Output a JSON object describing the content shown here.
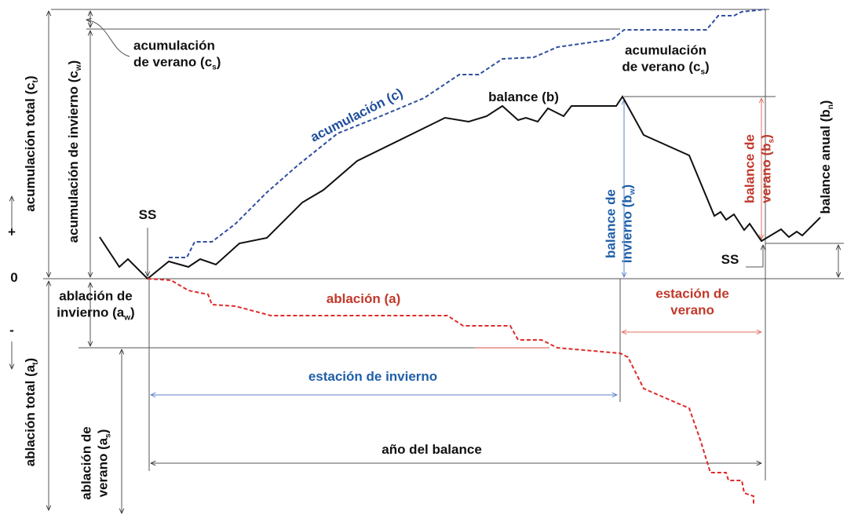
{
  "labels": [
    {
      "lines": [
        [
          "acumulación total (c",
          {
            "sub": "t"
          },
          ")"
        ]
      ],
      "color": "#111"
    },
    {
      "lines": [
        [
          "acumulación de invierno (c",
          {
            "sub": "w"
          },
          ")"
        ]
      ],
      "color": "#111"
    },
    {
      "lines": [
        [
          "acumulación"
        ],
        [
          "de verano (c",
          {
            "sub": "s"
          },
          ")"
        ]
      ],
      "color": "#111"
    },
    {
      "lines": [
        [
          "acumulación (c)"
        ]
      ],
      "color": "#1f4e9c"
    },
    {
      "lines": [
        [
          "balance (b)"
        ]
      ],
      "color": "#111"
    },
    {
      "lines": [
        [
          "acumulación"
        ],
        [
          "de verano (c",
          {
            "sub": "s"
          },
          ")"
        ]
      ],
      "color": "#111"
    },
    {
      "lines": [
        [
          "balance de"
        ],
        [
          "invierno (b",
          {
            "sub": "w"
          },
          ")"
        ]
      ],
      "color": "#1f5fa8"
    },
    {
      "lines": [
        [
          "balance de"
        ],
        [
          "verano (b",
          {
            "sub": "s"
          },
          ")"
        ]
      ],
      "color": "#c0392b"
    },
    {
      "lines": [
        [
          "balance anual (b",
          {
            "sub": "n"
          },
          ")"
        ]
      ],
      "color": "#111"
    },
    {
      "lines": [
        [
          "SS"
        ]
      ],
      "color": "#111"
    },
    {
      "lines": [
        [
          "SS"
        ]
      ],
      "color": "#111"
    },
    {
      "lines": [
        [
          "+"
        ]
      ],
      "color": "#111"
    },
    {
      "lines": [
        [
          "0"
        ]
      ],
      "color": "#111"
    },
    {
      "lines": [
        [
          "-"
        ]
      ],
      "color": "#111"
    },
    {
      "lines": [
        [
          "ablación de"
        ],
        [
          "invierno (a",
          {
            "sub": "w"
          },
          ")"
        ]
      ],
      "color": "#111"
    },
    {
      "lines": [
        [
          "ablación (a)"
        ]
      ],
      "color": "#c0392b"
    },
    {
      "lines": [
        [
          "estación de"
        ],
        [
          "verano"
        ]
      ],
      "color": "#c0392b"
    },
    {
      "lines": [
        [
          "estación de invierno"
        ]
      ],
      "color": "#1f5fa8"
    },
    {
      "lines": [
        [
          "año del balance"
        ]
      ],
      "color": "#111"
    },
    {
      "lines": [
        [
          "ablación total (a",
          {
            "sub": "t"
          },
          ")"
        ]
      ],
      "color": "#111"
    },
    {
      "lines": [
        [
          "ablación de"
        ],
        [
          "verano (a",
          {
            "sub": "s"
          },
          ")"
        ]
      ],
      "color": "#111"
    }
  ]
}
